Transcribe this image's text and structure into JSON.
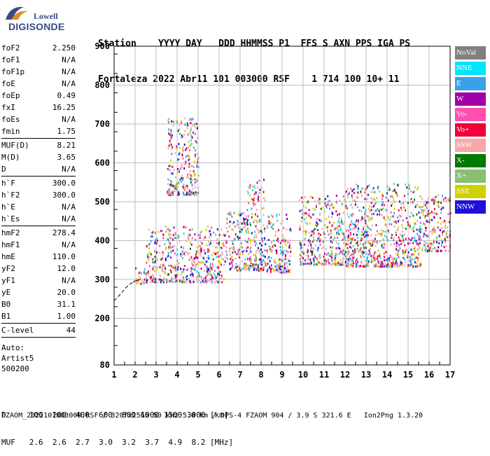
{
  "logo": {
    "top": "Lowell",
    "main": "DIGISONDE"
  },
  "header": {
    "line1": "Station    YYYY DAY   DDD HHMMSS P1  FFS S AXN PPS IGA PS",
    "line2": "Fortaleza 2022 Abr11 101 003000 RSF    1 714 100 10+ 11"
  },
  "params": [
    {
      "label": "foF2",
      "value": "2.250"
    },
    {
      "label": "foF1",
      "value": "N/A"
    },
    {
      "label": "foF1p",
      "value": "N/A"
    },
    {
      "label": "foE",
      "value": "N/A"
    },
    {
      "label": "foEp",
      "value": "0.49"
    },
    {
      "label": "fxI",
      "value": "16.25"
    },
    {
      "label": "foEs",
      "value": "N/A"
    },
    {
      "label": "fmin",
      "value": "1.75",
      "sep": true
    },
    {
      "label": "MUF(D)",
      "value": "8.21"
    },
    {
      "label": "M(D)",
      "value": "3.65"
    },
    {
      "label": "D",
      "value": "N/A",
      "sep": true
    },
    {
      "label": "h`F",
      "value": "300.0"
    },
    {
      "label": "h`F2",
      "value": "300.0"
    },
    {
      "label": "h`E",
      "value": "N/A"
    },
    {
      "label": "h`Es",
      "value": "N/A",
      "sep": true
    },
    {
      "label": "hmF2",
      "value": "278.4"
    },
    {
      "label": "hmF1",
      "value": "N/A"
    },
    {
      "label": "hmE",
      "value": "110.0"
    },
    {
      "label": "yF2",
      "value": "12.0"
    },
    {
      "label": "yF1",
      "value": "N/A"
    },
    {
      "label": "yE",
      "value": "20.0"
    },
    {
      "label": "B0",
      "value": "31.1"
    },
    {
      "label": "B1",
      "value": "1.00",
      "sep": true
    },
    {
      "label": "C-level",
      "value": "44",
      "sep": true
    }
  ],
  "notes": [
    "Auto:",
    "Artist5",
    "500200"
  ],
  "legend": [
    {
      "label": "NoVal",
      "color": "#808080"
    },
    {
      "label": "NNE",
      "color": "#00e5ff"
    },
    {
      "label": "E",
      "color": "#3aa0e8"
    },
    {
      "label": "W",
      "color": "#a000a8"
    },
    {
      "label": "Vo-",
      "color": "#ff50b0"
    },
    {
      "label": "Vo+",
      "color": "#f0003a"
    },
    {
      "label": "SSW",
      "color": "#f6a8a8"
    },
    {
      "label": "X-",
      "color": "#007a00"
    },
    {
      "label": "X+",
      "color": "#88c070"
    },
    {
      "label": "SSE",
      "color": "#d0d000"
    },
    {
      "label": "NNW",
      "color": "#2010d8"
    }
  ],
  "bottom": {
    "line1": "D     100  200  400  600  800 1000 1500 3000 [km]",
    "line2": "MUF   2.6  2.6  2.7  3.0  3.2  3.7  4.9  8.2 [MHz]"
  },
  "footer": "FZAOM_2022101003000.RSF / 320fx256h 50 kHz 5.0 km / DPS-4 FZAOM 904 / 3.9 S 321.6 E   Ion2Png 1.3.20",
  "chart_data": {
    "type": "scatter",
    "title": "",
    "xlabel": "",
    "ylabel": "",
    "xlim": [
      1,
      17
    ],
    "ylim": [
      80,
      900
    ],
    "x_ticks": [
      1,
      2,
      3,
      4,
      5,
      6,
      7,
      8,
      9,
      10,
      11,
      12,
      13,
      14,
      15,
      16,
      17
    ],
    "y_ticks": [
      80,
      200,
      300,
      400,
      500,
      600,
      700,
      800,
      900
    ],
    "grid": true,
    "trace_curve": [
      [
        1.0,
        245
      ],
      [
        1.3,
        262
      ],
      [
        1.55,
        278
      ],
      [
        1.75,
        288
      ],
      [
        2.0,
        296
      ],
      [
        2.25,
        300
      ]
    ],
    "echo_regions": [
      {
        "x": [
          1.9,
          2.5
        ],
        "y": [
          290,
          340
        ]
      },
      {
        "x": [
          2.5,
          6.2
        ],
        "y": [
          295,
          440
        ]
      },
      {
        "x": [
          3.5,
          5.0
        ],
        "y": [
          520,
          720
        ]
      },
      {
        "x": [
          6.2,
          7.3
        ],
        "y": [
          325,
          480
        ]
      },
      {
        "x": [
          7.3,
          8.2
        ],
        "y": [
          325,
          560
        ]
      },
      {
        "x": [
          8.2,
          9.4
        ],
        "y": [
          320,
          470
        ]
      },
      {
        "x": [
          9.8,
          12.0
        ],
        "y": [
          340,
          520
        ]
      },
      {
        "x": [
          12.0,
          15.6
        ],
        "y": [
          335,
          550
        ]
      },
      {
        "x": [
          15.6,
          17.0
        ],
        "y": [
          375,
          520
        ]
      }
    ]
  }
}
